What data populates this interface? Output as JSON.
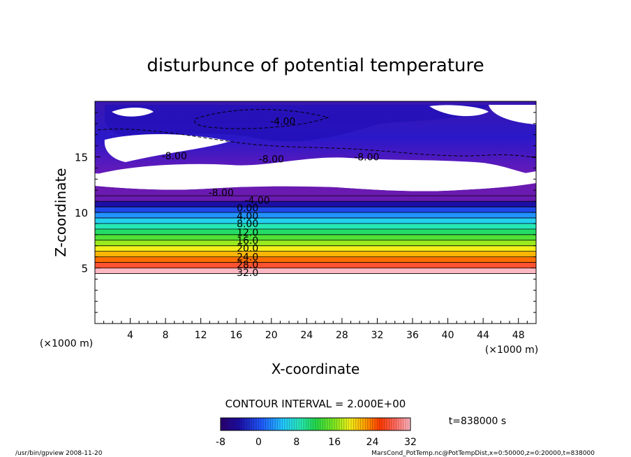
{
  "chart_data": {
    "type": "contour",
    "title": "disturbunce of potential temperature",
    "xlabel": "X-coordinate",
    "ylabel": "Z-coordinate",
    "x_unit": "(×1000 m)",
    "x_unit_bottom_left": "(×1000 m)",
    "xlim": [
      0,
      50
    ],
    "ylim": [
      0,
      20
    ],
    "x_ticks": [
      4,
      8,
      12,
      16,
      20,
      24,
      28,
      32,
      36,
      40,
      44,
      48
    ],
    "y_ticks": [
      5,
      10,
      15
    ],
    "contour_interval_text": "CONTOUR INTERVAL = 2.000E+00",
    "time_text": "t=838000 s",
    "colorbar": {
      "min": -8,
      "max": 32,
      "ticks": [
        -8,
        0,
        8,
        16,
        24,
        32
      ]
    },
    "contour_labels": [
      {
        "text": "-4.00",
        "x": 21.3,
        "z": 18.2
      },
      {
        "text": "-8.00",
        "x": 9.0,
        "z": 15.1
      },
      {
        "text": "-8.00",
        "x": 20.0,
        "z": 14.8
      },
      {
        "text": "-8.00",
        "x": 30.8,
        "z": 15.0
      },
      {
        "text": "-8.00",
        "x": 14.3,
        "z": 11.8
      },
      {
        "text": "-4.00",
        "x": 18.4,
        "z": 11.1
      },
      {
        "text": "0.00",
        "x": 17.3,
        "z": 10.4
      },
      {
        "text": "4.00",
        "x": 17.3,
        "z": 9.7
      },
      {
        "text": "8.00",
        "x": 17.3,
        "z": 9.0
      },
      {
        "text": "12.0",
        "x": 17.3,
        "z": 8.2
      },
      {
        "text": "16.0",
        "x": 17.3,
        "z": 7.5
      },
      {
        "text": "20.0",
        "x": 17.3,
        "z": 6.8
      },
      {
        "text": "24.0",
        "x": 17.3,
        "z": 6.0
      },
      {
        "text": "28.0",
        "x": 17.3,
        "z": 5.3
      },
      {
        "text": "32.0",
        "x": 17.3,
        "z": 4.6
      }
    ],
    "bands": [
      {
        "z0": 4.5,
        "z1": 5.0,
        "value": 32
      },
      {
        "z0": 5.0,
        "z1": 5.5,
        "value": 29
      },
      {
        "z0": 5.5,
        "z1": 6.0,
        "value": 26
      },
      {
        "z0": 6.0,
        "z1": 6.5,
        "value": 23
      },
      {
        "z0": 6.5,
        "z1": 7.0,
        "value": 20
      },
      {
        "z0": 7.0,
        "z1": 7.5,
        "value": 17
      },
      {
        "z0": 7.5,
        "z1": 8.0,
        "value": 14
      },
      {
        "z0": 8.0,
        "z1": 8.5,
        "value": 11
      },
      {
        "z0": 8.5,
        "z1": 9.0,
        "value": 8
      },
      {
        "z0": 9.0,
        "z1": 9.5,
        "value": 5
      },
      {
        "z0": 9.5,
        "z1": 10.0,
        "value": 2
      },
      {
        "z0": 10.0,
        "z1": 10.5,
        "value": -1
      },
      {
        "z0": 10.5,
        "z1": 11.0,
        "value": -4
      },
      {
        "z0": 11.0,
        "z1": 11.5,
        "value": -6
      },
      {
        "z0": 11.5,
        "z1": 12.3,
        "value": -7
      }
    ]
  },
  "footer": {
    "left": "/usr/bin/gpview   2008-11-20",
    "right": "MarsCond_PotTemp.nc@PotTempDist,x=0:50000,z=0:20000,t=838000"
  }
}
